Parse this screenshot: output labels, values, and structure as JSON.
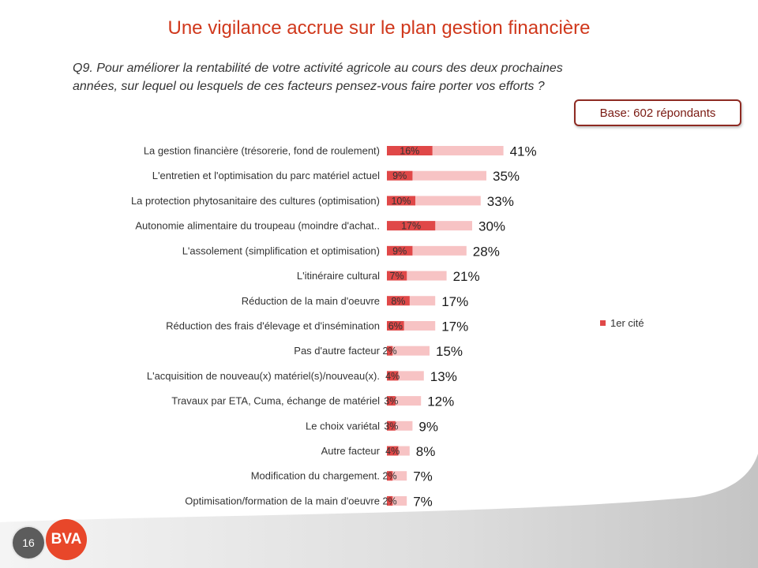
{
  "slide": {
    "title": "Une vigilance accrue sur le plan gestion financière",
    "question_lines": [
      "Q9. Pour améliorer la rentabilité de votre activité agricole au cours des deux prochaines",
      "années, sur lequel ou lesquels de ces facteurs pensez-vous faire porter vos efforts ?"
    ],
    "base_label": "Base: 602 répondants",
    "page_number": "16",
    "logo_text": "BVA"
  },
  "colors": {
    "title": "#d0381c",
    "logo": "#e8472a",
    "base_border": "#8e2a22"
  },
  "chart_data": {
    "type": "bar",
    "orientation": "horizontal",
    "unit": "%",
    "grid": false,
    "legend": {
      "position": "right"
    },
    "categories": [
      "La gestion financière (trésorerie, fond de roulement)",
      "L'entretien et l'optimisation du parc matériel actuel",
      "La protection phytosanitaire des cultures (optimisation)",
      "Autonomie alimentaire du troupeau (moindre d'achat..",
      "L'assolement (simplification et optimisation)",
      "L'itinéraire cultural",
      "Réduction de la main d'oeuvre",
      "Réduction des frais d'élevage et d'insémination",
      "Pas d'autre facteur",
      "L'acquisition de nouveau(x) matériel(s)/nouveau(x).",
      "Travaux par ETA, Cuma, échange de matériel",
      "Le choix variétal",
      "Autre facteur",
      "Modification du chargement.",
      "Optimisation/formation de la main d'oeuvre"
    ],
    "series": [
      {
        "name": "1er cité",
        "color": "#e04848",
        "values": [
          16,
          9,
          10,
          17,
          9,
          7,
          8,
          6,
          2,
          4,
          3,
          3,
          4,
          2,
          2
        ]
      },
      {
        "color": "#f7c3c4",
        "values": [
          41,
          35,
          33,
          30,
          28,
          21,
          17,
          17,
          15,
          13,
          12,
          9,
          8,
          7,
          7
        ]
      }
    ]
  }
}
